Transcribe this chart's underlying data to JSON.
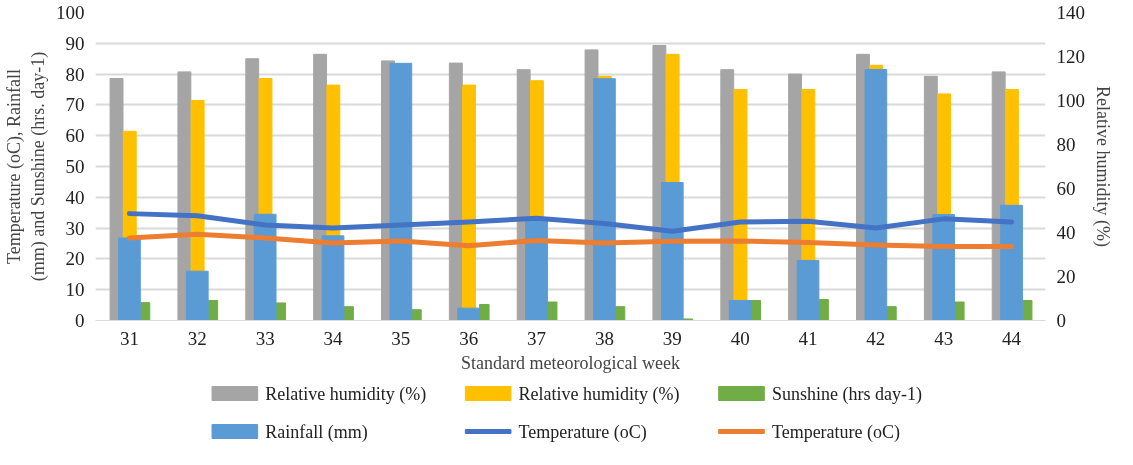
{
  "chart_data": {
    "type": "bar",
    "xlabel": "Standard meteorological week",
    "ylabel": "Temperature (oC), Rainfall (mm) and Sunshine (hrs. day-1)",
    "y2label": "Relative humidity (%)",
    "categories": [
      "31",
      "32",
      "33",
      "34",
      "35",
      "36",
      "37",
      "38",
      "39",
      "40",
      "41",
      "42",
      "43",
      "44"
    ],
    "ylim": [
      0,
      100
    ],
    "yticks": [
      0,
      10,
      20,
      30,
      40,
      50,
      60,
      70,
      80,
      90,
      100
    ],
    "y2lim": [
      0,
      140
    ],
    "y2ticks": [
      0,
      20,
      40,
      60,
      80,
      100,
      120,
      140
    ],
    "grid": "y",
    "legend": "bottom",
    "series": [
      {
        "name": "Relative humidity (%)",
        "axis": "y2",
        "color": "#a5a5a5",
        "values": [
          110,
          113,
          119,
          121,
          118,
          117,
          114,
          123,
          125,
          114,
          112,
          121,
          111,
          113
        ]
      },
      {
        "name": "Relative humidity (%)",
        "axis": "y2",
        "color": "#ffc000",
        "values": [
          86,
          100,
          110,
          107,
          null,
          107,
          109,
          111,
          121,
          105,
          105,
          116,
          103,
          105
        ]
      },
      {
        "name": "Sunshine (hrs day-1)",
        "color": "#70ad47",
        "values": [
          5.8,
          6.5,
          5.7,
          4.5,
          3.5,
          5.2,
          6.0,
          4.5,
          0.5,
          6.5,
          6.8,
          4.5,
          6.0,
          6.5
        ]
      },
      {
        "name": "Rainfall (mm)",
        "color": "#5b9bd5",
        "values": [
          26.8,
          16,
          34.5,
          27.5,
          83.5,
          4,
          33,
          78.5,
          44.8,
          6.5,
          19.5,
          81.5,
          34.4,
          37.4
        ]
      },
      {
        "name": "Temperature (oC)",
        "type": "line",
        "color": "#4472c4",
        "values": [
          34.7,
          34,
          31,
          30,
          31,
          32,
          33.2,
          31.5,
          29,
          32,
          32.2,
          30,
          33,
          32
        ]
      },
      {
        "name": "Temperature (oC)",
        "type": "line",
        "color": "#ed7d31",
        "values": [
          26.8,
          28,
          26.8,
          25.2,
          25.8,
          24.3,
          26,
          25.2,
          25.7,
          25.8,
          25.3,
          24.5,
          24,
          24
        ]
      }
    ]
  }
}
